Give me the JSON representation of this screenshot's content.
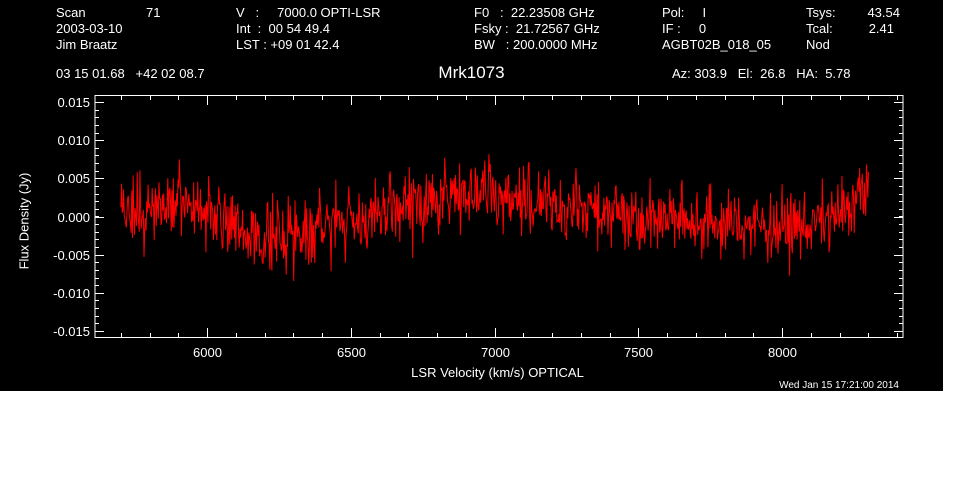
{
  "header": {
    "col1": {
      "scan_label": "Scan",
      "scan_value": "71",
      "date": "2003-03-10",
      "observer": "Jim Braatz"
    },
    "col2": {
      "v_line": "V   :     7000.0 OPTI-LSR",
      "int_line": "Int  :  00 54 49.4",
      "lst_line": "LST : +09 01 42.4"
    },
    "col3": {
      "f0_line": "F0   :  22.23508 GHz",
      "fsky_line": "Fsky :  21.72567 GHz",
      "bw_line": "BW   : 200.0000 MHz"
    },
    "col4": {
      "pol_line": "Pol:     I",
      "if_line": "IF :     0",
      "project": "AGBT02B_018_05"
    },
    "col5": {
      "tsys_label": "Tsys:",
      "tsys_value": "43.54",
      "tcal_label": "Tcal:",
      "tcal_value": "2.41",
      "mode": "Nod"
    },
    "coords": "03 15 01.68   +42 02 08.7",
    "source": "Mrk1073",
    "az_el_ha": "Az: 303.9   El:  26.8   HA:  5.78"
  },
  "footer": {
    "timestamp": "Wed Jan 15 17:21:00 2014"
  },
  "chart_data": {
    "type": "line",
    "xlabel": "LSR Velocity (km/s) OPTICAL",
    "ylabel": "Flux Density (Jy)",
    "xlim": [
      5610,
      8420
    ],
    "ylim": [
      -0.0158,
      0.0158
    ],
    "x_ticks": [
      6000,
      6500,
      7000,
      7500,
      8000
    ],
    "x_tick_labels": [
      "6000",
      "6500",
      "7000",
      "7500",
      "8000"
    ],
    "y_ticks": [
      -0.015,
      -0.01,
      -0.005,
      0.0,
      0.005,
      0.01,
      0.015
    ],
    "y_tick_labels": [
      "-0.015",
      "-0.010",
      "-0.005",
      "0.000",
      "0.005",
      "0.010",
      "0.015"
    ],
    "grid": false,
    "series": [
      {
        "color": "#ff0000",
        "x_start": 5700,
        "x_end": 8300,
        "baseline_x": [
          5700,
          5800,
          5900,
          6000,
          6100,
          6200,
          6300,
          6400,
          6500,
          6600,
          6700,
          6800,
          6900,
          7000,
          7100,
          7200,
          7300,
          7400,
          7500,
          7600,
          7700,
          7800,
          7900,
          8000,
          8100,
          8200,
          8300
        ],
        "baseline_y": [
          0.0,
          0.001,
          0.0015,
          0.001,
          -0.002,
          -0.003,
          -0.002,
          -0.001,
          -0.0005,
          0.0,
          0.0015,
          0.002,
          0.0035,
          0.003,
          0.002,
          0.0015,
          0.001,
          0.001,
          0.0,
          0.0,
          -0.0005,
          -0.001,
          -0.001,
          -0.0015,
          -0.001,
          0.0,
          0.004
        ],
        "noise_rms": 0.0022,
        "n_channels": 1100
      }
    ]
  }
}
